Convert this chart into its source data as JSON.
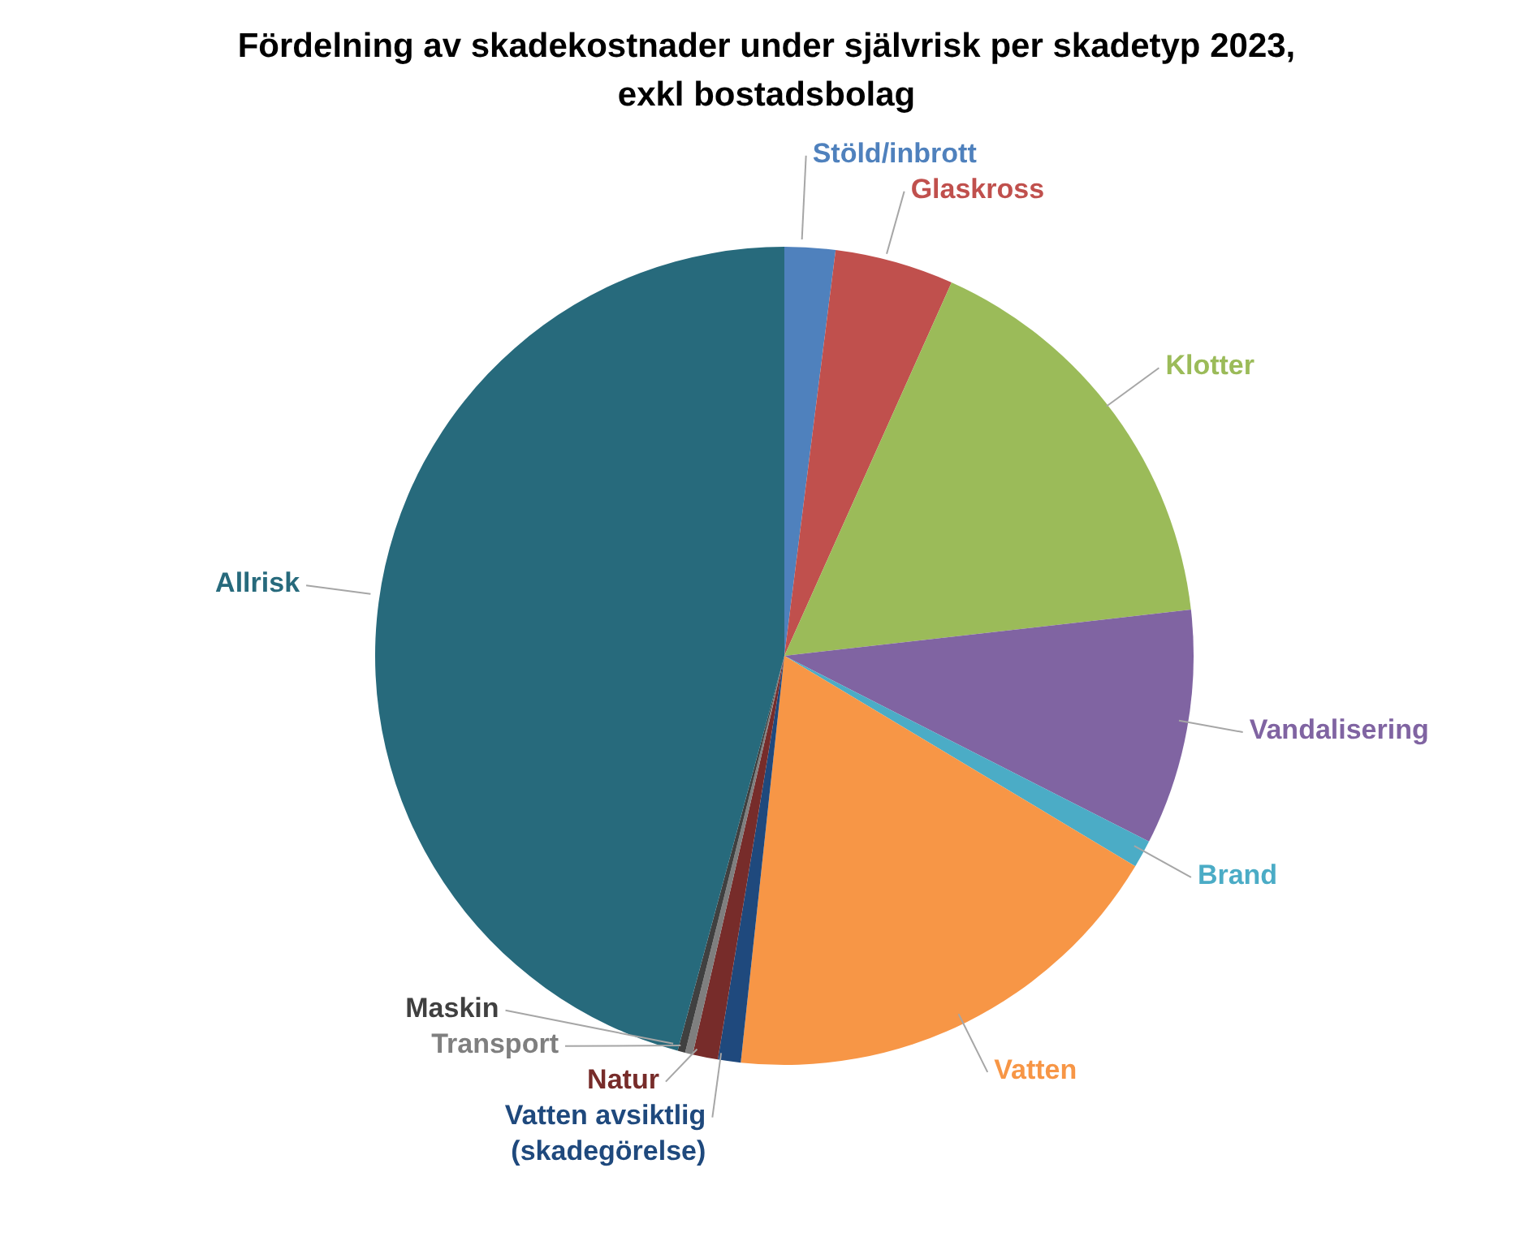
{
  "chart_data": {
    "type": "pie",
    "title": "Fördelning av skadekostnader under självrisk per skadetyp 2023,",
    "subtitle": "exkl bostadsbolag",
    "categories": [
      "Stöld/inbrott",
      "Glaskross",
      "Klotter",
      "Vandalisering",
      "Brand",
      "Vatten",
      "Vatten avsiktlig (skadegörelse)",
      "Natur",
      "Transport",
      "Maskin",
      "Allrisk"
    ],
    "values": [
      2.0,
      4.7,
      16.5,
      9.3,
      1.1,
      18.1,
      0.9,
      1.0,
      0.3,
      0.3,
      45.8
    ],
    "colors": [
      "#4f81bd",
      "#c0504d",
      "#9bbb59",
      "#8064a2",
      "#4bacc6",
      "#f79646",
      "#1f497d",
      "#772c2a",
      "#7f7f7f",
      "#404040",
      "#276a7c"
    ]
  }
}
